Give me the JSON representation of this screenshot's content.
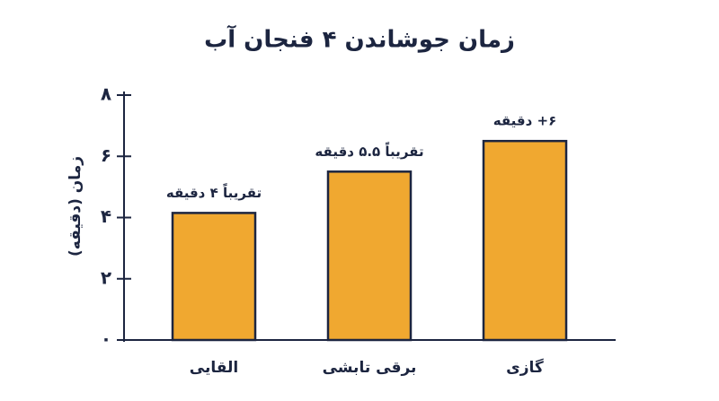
{
  "chart_data": {
    "type": "bar",
    "title": "زمان جوشاندن ۴ فنجان آب",
    "y_label": "زمان (دقیقه)",
    "categories": [
      "القایی",
      "برقی تابشی",
      "گازی"
    ],
    "values": [
      4.15,
      5.5,
      6.5
    ],
    "value_labels": [
      "تقریباً ۴ دقیقه",
      "تقریباً ۵.۵ دقیقه",
      "۶+ دقیقه"
    ],
    "color": "#f0a830",
    "ylim": [
      0,
      8
    ],
    "yticks": [
      {
        "value": 0,
        "label": "۰"
      },
      {
        "value": 2,
        "label": "۲"
      },
      {
        "value": 4,
        "label": "۴"
      },
      {
        "value": 6,
        "label": "۶"
      },
      {
        "value": 8,
        "label": "۸"
      }
    ],
    "grid": false
  }
}
